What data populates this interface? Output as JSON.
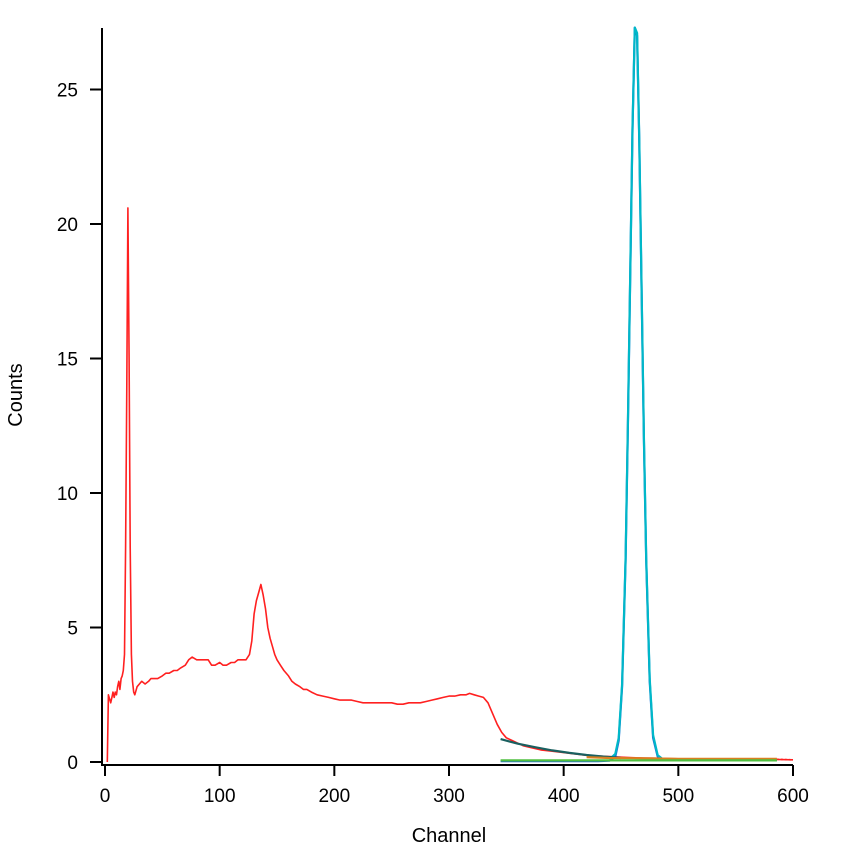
{
  "chart_data": {
    "type": "line",
    "title": "",
    "xlabel": "Channel",
    "ylabel": "Counts",
    "xlim": [
      0,
      600
    ],
    "ylim": [
      0,
      27.3
    ],
    "x_ticks": [
      0,
      100,
      200,
      300,
      400,
      500,
      600
    ],
    "y_ticks": [
      0,
      5,
      10,
      15,
      20,
      25
    ],
    "grid": false,
    "legend": "none",
    "series": [
      {
        "color": "#ff2020",
        "style": "solid",
        "x": [
          2,
          3,
          5,
          6,
          7,
          8,
          9,
          10,
          11,
          12,
          13,
          14,
          15,
          16,
          17,
          18,
          19,
          20,
          21,
          22,
          23,
          24,
          25,
          26,
          28,
          30,
          32,
          35,
          38,
          40,
          43,
          46,
          50,
          53,
          56,
          60,
          63,
          66,
          70,
          73,
          76,
          80,
          83,
          86,
          90,
          93,
          96,
          100,
          103,
          106,
          110,
          113,
          116,
          120,
          123,
          126,
          128,
          130,
          132,
          134,
          136,
          138,
          140,
          142,
          144,
          146,
          148,
          150,
          153,
          156,
          160,
          163,
          166,
          170,
          173,
          176,
          180,
          185,
          190,
          195,
          200,
          205,
          210,
          215,
          220,
          225,
          230,
          235,
          240,
          245,
          250,
          255,
          260,
          265,
          270,
          275,
          280,
          285,
          290,
          295,
          300,
          305,
          310,
          315,
          318,
          322,
          326,
          330,
          334,
          338,
          342,
          346,
          350,
          355,
          360,
          365,
          370,
          380,
          390,
          400,
          410,
          420,
          430,
          440,
          450,
          460,
          470,
          480,
          490,
          500,
          510,
          520,
          540,
          560,
          580,
          600
        ],
        "values": [
          0.0,
          2.5,
          2.2,
          2.4,
          2.6,
          2.4,
          2.6,
          2.5,
          2.8,
          3.0,
          2.7,
          3.1,
          3.2,
          3.4,
          4.0,
          8.0,
          14.0,
          20.6,
          15.0,
          8.0,
          4.0,
          3.0,
          2.6,
          2.5,
          2.8,
          2.9,
          3.0,
          2.9,
          3.0,
          3.1,
          3.1,
          3.1,
          3.2,
          3.3,
          3.3,
          3.4,
          3.4,
          3.5,
          3.6,
          3.8,
          3.9,
          3.8,
          3.8,
          3.8,
          3.8,
          3.6,
          3.6,
          3.7,
          3.6,
          3.6,
          3.7,
          3.7,
          3.8,
          3.8,
          3.8,
          4.0,
          4.5,
          5.5,
          6.0,
          6.3,
          6.6,
          6.2,
          5.7,
          5.0,
          4.6,
          4.3,
          4.0,
          3.8,
          3.6,
          3.4,
          3.2,
          3.0,
          2.9,
          2.8,
          2.7,
          2.7,
          2.6,
          2.5,
          2.45,
          2.4,
          2.35,
          2.3,
          2.3,
          2.3,
          2.25,
          2.2,
          2.2,
          2.2,
          2.2,
          2.2,
          2.2,
          2.15,
          2.15,
          2.2,
          2.2,
          2.2,
          2.25,
          2.3,
          2.35,
          2.4,
          2.45,
          2.45,
          2.5,
          2.5,
          2.55,
          2.5,
          2.45,
          2.4,
          2.2,
          1.8,
          1.4,
          1.1,
          0.9,
          0.8,
          0.7,
          0.6,
          0.55,
          0.45,
          0.4,
          0.35,
          0.3,
          0.25,
          0.22,
          0.2,
          0.18,
          0.16,
          0.15,
          0.14,
          0.13,
          0.12,
          0.12,
          0.11,
          0.1,
          0.1,
          0.1,
          0.08
        ]
      },
      {
        "color": "#1e66d6",
        "style": "solid",
        "x": [
          345,
          400,
          430,
          440,
          445,
          448,
          451,
          454,
          456,
          458,
          460,
          462,
          464,
          466,
          468,
          470,
          472,
          475,
          478,
          482,
          486,
          490,
          500,
          530,
          560,
          586
        ],
        "values": [
          0.03,
          0.03,
          0.03,
          0.05,
          0.2,
          0.8,
          2.8,
          7.5,
          12.5,
          18.0,
          23.5,
          27.3,
          27.0,
          23.0,
          17.5,
          12.0,
          7.5,
          3.0,
          0.9,
          0.2,
          0.1,
          0.08,
          0.07,
          0.07,
          0.07,
          0.07
        ]
      },
      {
        "color": "#00b8c8",
        "style": "solid",
        "x": [
          440,
          445,
          448,
          451,
          454,
          456,
          458,
          460,
          462,
          464,
          466,
          468,
          470,
          472,
          475,
          478,
          482,
          486
        ],
        "values": [
          0.1,
          0.3,
          0.9,
          2.9,
          7.6,
          12.6,
          18.1,
          23.6,
          27.3,
          27.1,
          23.1,
          17.6,
          12.1,
          7.6,
          3.1,
          1.0,
          0.25,
          0.12
        ]
      },
      {
        "color": "#1a6060",
        "style": "solid",
        "x": [
          345,
          360,
          375,
          390,
          405,
          420,
          435,
          450
        ],
        "values": [
          0.85,
          0.68,
          0.55,
          0.43,
          0.34,
          0.26,
          0.2,
          0.15
        ]
      },
      {
        "color": "#d88020",
        "style": "solid",
        "x": [
          420,
          440,
          460,
          480,
          500,
          530,
          560,
          586
        ],
        "values": [
          0.18,
          0.15,
          0.14,
          0.13,
          0.12,
          0.12,
          0.12,
          0.12
        ]
      },
      {
        "color": "#50c040",
        "style": "solid",
        "x": [
          345,
          380,
          420,
          460,
          500,
          540,
          586
        ],
        "values": [
          0.06,
          0.06,
          0.06,
          0.06,
          0.06,
          0.06,
          0.06
        ]
      }
    ]
  }
}
